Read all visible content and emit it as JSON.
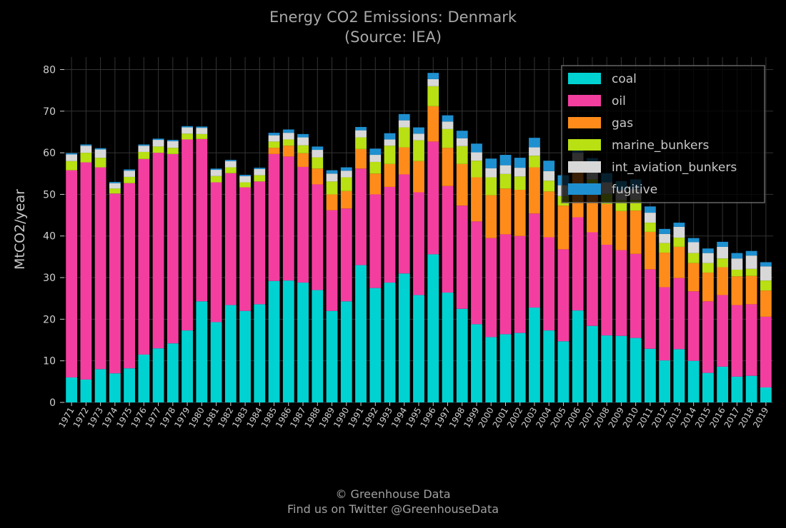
{
  "chart_data": {
    "type": "bar",
    "stacked": true,
    "title": "Energy CO2 Emissions: Denmark",
    "subtitle": "(Source: IEA)",
    "xlabel": "",
    "ylabel": "MtCO2/year",
    "ylim": [
      0,
      83
    ],
    "yticks": [
      0,
      10,
      20,
      30,
      40,
      50,
      60,
      70,
      80
    ],
    "grid": true,
    "legend_position": "top-right",
    "categories": [
      "1971",
      "1972",
      "1973",
      "1974",
      "1975",
      "1976",
      "1977",
      "1978",
      "1979",
      "1980",
      "1981",
      "1982",
      "1983",
      "1984",
      "1985",
      "1986",
      "1987",
      "1988",
      "1989",
      "1990",
      "1991",
      "1992",
      "1993",
      "1994",
      "1995",
      "1996",
      "1997",
      "1998",
      "1999",
      "2000",
      "2001",
      "2002",
      "2003",
      "2004",
      "2005",
      "2006",
      "2007",
      "2008",
      "2009",
      "2010",
      "2011",
      "2012",
      "2013",
      "2014",
      "2015",
      "2016",
      "2017",
      "2018",
      "2019"
    ],
    "series": [
      {
        "name": "coal",
        "color": "#00d2d2",
        "values": [
          6.0,
          5.5,
          8.0,
          7.0,
          8.2,
          11.5,
          13.0,
          14.2,
          17.3,
          24.3,
          19.3,
          23.4,
          22.0,
          23.6,
          29.2,
          29.3,
          28.8,
          27.0,
          22.0,
          24.3,
          33.0,
          27.5,
          28.8,
          31.0,
          25.8,
          35.6,
          26.4,
          22.5,
          18.8,
          15.7,
          16.4,
          16.7,
          22.8,
          17.3,
          14.7,
          22.1,
          18.4,
          16.1,
          16.0,
          15.5,
          12.9,
          10.1,
          12.8,
          10.0,
          7.1,
          8.6,
          6.2,
          6.4,
          3.6
        ]
      },
      {
        "name": "oil",
        "color": "#f33ea0",
        "values": [
          49.8,
          52.2,
          48.5,
          43.2,
          44.5,
          47.0,
          47.0,
          45.5,
          45.9,
          39.0,
          33.6,
          31.7,
          29.7,
          29.5,
          30.5,
          29.8,
          27.8,
          25.4,
          24.2,
          22.3,
          23.2,
          22.5,
          23.0,
          23.8,
          24.7,
          27.1,
          25.6,
          24.8,
          24.7,
          23.8,
          24.0,
          23.3,
          22.6,
          22.4,
          22.1,
          22.4,
          22.5,
          21.8,
          20.6,
          20.2,
          19.1,
          17.6,
          17.1,
          16.7,
          17.2,
          17.2,
          17.2,
          17.2,
          17.0
        ]
      },
      {
        "name": "gas",
        "color": "#ff8c1a",
        "values": [
          0,
          0,
          0,
          0,
          0,
          0,
          0,
          0,
          0,
          0,
          0,
          0,
          0,
          0,
          1.5,
          2.6,
          3.3,
          3.8,
          3.8,
          4.2,
          4.7,
          5.0,
          5.5,
          6.5,
          7.5,
          8.5,
          9.2,
          10.0,
          10.6,
          10.3,
          11.0,
          11.1,
          11.1,
          11.0,
          10.5,
          10.7,
          10.2,
          9.8,
          9.4,
          10.4,
          9.0,
          8.3,
          7.5,
          6.8,
          6.9,
          6.7,
          6.9,
          6.8,
          6.3
        ]
      },
      {
        "name": "marine_bunkers",
        "color": "#b8e012",
        "values": [
          2.2,
          2.3,
          2.3,
          1.2,
          1.5,
          1.7,
          1.5,
          1.5,
          1.4,
          1.2,
          1.5,
          1.4,
          1.2,
          1.5,
          1.5,
          1.5,
          1.9,
          2.7,
          3.1,
          3.3,
          2.8,
          2.8,
          4.4,
          4.8,
          5.0,
          4.8,
          4.5,
          4.3,
          4.0,
          4.3,
          3.5,
          3.2,
          2.8,
          2.6,
          2.3,
          2.3,
          2.5,
          2.4,
          2.6,
          2.6,
          2.2,
          2.3,
          2.2,
          2.4,
          2.3,
          2.1,
          1.6,
          1.7,
          2.4
        ]
      },
      {
        "name": "int_aviation_bunkers",
        "color": "#d8d8d8",
        "values": [
          1.6,
          1.7,
          2.0,
          1.3,
          1.5,
          1.5,
          1.6,
          1.6,
          1.5,
          1.5,
          1.5,
          1.5,
          1.5,
          1.5,
          1.5,
          1.6,
          1.9,
          1.8,
          1.9,
          1.6,
          1.7,
          1.7,
          1.5,
          1.7,
          1.6,
          1.7,
          1.8,
          1.9,
          2.0,
          2.2,
          2.1,
          2.1,
          2.0,
          2.3,
          2.6,
          2.5,
          2.6,
          2.8,
          2.4,
          2.6,
          2.4,
          2.2,
          2.6,
          2.6,
          2.4,
          2.8,
          2.7,
          3.2,
          3.4
        ]
      },
      {
        "name": "fugitive",
        "color": "#1e90d0",
        "values": [
          0.3,
          0.3,
          0.3,
          0.3,
          0.3,
          0.3,
          0.3,
          0.3,
          0.3,
          0.3,
          0.3,
          0.3,
          0.3,
          0.3,
          0.6,
          0.8,
          0.8,
          0.8,
          0.8,
          0.8,
          0.8,
          1.5,
          1.5,
          1.5,
          1.5,
          1.5,
          1.5,
          1.8,
          2.1,
          2.3,
          2.5,
          2.4,
          2.3,
          2.5,
          2.4,
          2.4,
          2.5,
          2.2,
          2.2,
          2.3,
          1.5,
          1.2,
          1.0,
          1.0,
          1.1,
          1.2,
          1.3,
          1.1,
          1.0
        ]
      }
    ]
  },
  "footer": {
    "line1": "© Greenhouse Data",
    "line2": "Find us on Twitter @GreenhouseData"
  }
}
